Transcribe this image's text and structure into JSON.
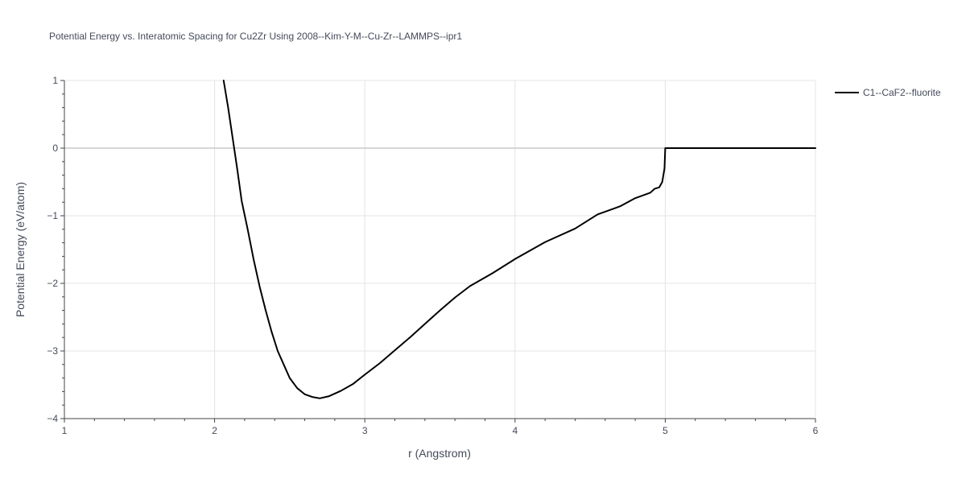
{
  "chart_data": {
    "type": "line",
    "title": "Potential Energy vs. Interatomic Spacing for Cu2Zr Using 2008--Kim-Y-M--Cu-Zr--LAMMPS--ipr1",
    "xlabel": "r (Angstrom)",
    "ylabel": "Potential Energy (eV/atom)",
    "xlim": [
      1,
      6
    ],
    "ylim": [
      -4,
      1
    ],
    "x_ticks": [
      1,
      2,
      3,
      4,
      5,
      6
    ],
    "y_ticks": [
      1,
      0,
      -1,
      -2,
      -3,
      -4
    ],
    "x_tick_labels": [
      "1",
      "2",
      "3",
      "4",
      "5",
      "6"
    ],
    "y_tick_labels": [
      "1",
      "0",
      "−1",
      "−2",
      "−3",
      "−4"
    ],
    "grid": true,
    "legend_position": "top-right",
    "series": [
      {
        "name": "C1--CaF2--fluorite",
        "color": "#000000",
        "x": [
          2.06,
          2.09,
          2.12,
          2.15,
          2.18,
          2.22,
          2.26,
          2.3,
          2.34,
          2.38,
          2.42,
          2.46,
          2.5,
          2.55,
          2.6,
          2.65,
          2.7,
          2.76,
          2.84,
          2.92,
          3.0,
          3.1,
          3.2,
          3.3,
          3.4,
          3.5,
          3.6,
          3.7,
          3.85,
          4.0,
          4.2,
          4.4,
          4.55,
          4.7,
          4.8,
          4.9,
          4.93,
          4.96,
          4.98,
          4.995,
          5.0,
          5.2,
          5.5,
          6.0
        ],
        "y": [
          1.0,
          0.6,
          0.15,
          -0.3,
          -0.78,
          -1.2,
          -1.65,
          -2.05,
          -2.4,
          -2.72,
          -3.0,
          -3.2,
          -3.4,
          -3.55,
          -3.64,
          -3.68,
          -3.7,
          -3.67,
          -3.59,
          -3.49,
          -3.35,
          -3.18,
          -2.99,
          -2.8,
          -2.6,
          -2.4,
          -2.21,
          -2.04,
          -1.85,
          -1.64,
          -1.39,
          -1.19,
          -0.98,
          -0.86,
          -0.74,
          -0.66,
          -0.6,
          -0.58,
          -0.5,
          -0.3,
          0.0,
          0.0,
          0.0,
          0.0
        ]
      }
    ]
  }
}
